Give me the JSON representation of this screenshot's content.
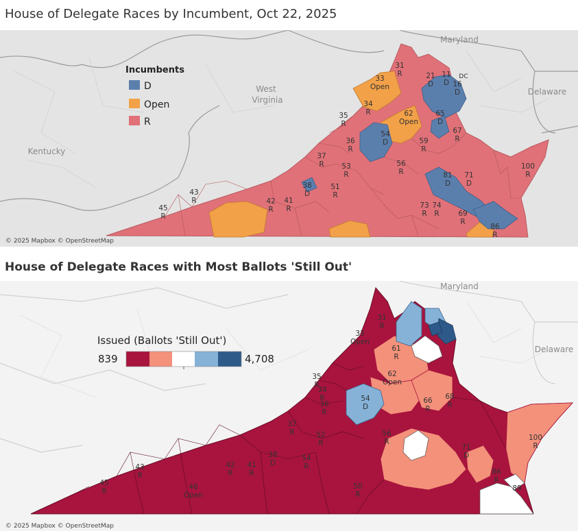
{
  "titles": {
    "incumbent_map": "House of Delegate Races by Incumbent, Oct 22, 2025",
    "ballots_map": "House of Delegate Races with Most Ballots 'Still Out'"
  },
  "colors": {
    "D": "#5b7fad",
    "Open": "#f2a148",
    "R": "#e07178",
    "state_border": "#777777",
    "ramp": [
      "#a8143e",
      "#f4917a",
      "#ffffff",
      "#86b2d8",
      "#2e5a8a"
    ]
  },
  "incumbent_map": {
    "legend": {
      "title": "Incumbents",
      "items": [
        {
          "label": "D",
          "color": "#5b7fad"
        },
        {
          "label": "Open",
          "color": "#f2a148"
        },
        {
          "label": "R",
          "color": "#e07178"
        }
      ]
    },
    "place_labels": {
      "maryland": "Maryland",
      "west_virginia_1": "West",
      "west_virginia_2": "Virginia",
      "kentucky": "Kentucky",
      "delaware": "Delaware",
      "dc": "DC"
    },
    "districts": [
      {
        "num": "31",
        "party": "R"
      },
      {
        "num": "33",
        "party": "Open"
      },
      {
        "num": "21",
        "party": "D"
      },
      {
        "num": "11",
        "party": "D"
      },
      {
        "num": "16",
        "party": "D"
      },
      {
        "num": "34",
        "party": "R"
      },
      {
        "num": "62",
        "party": "Open"
      },
      {
        "num": "65",
        "party": "D"
      },
      {
        "num": "35",
        "party": "R"
      },
      {
        "num": "54",
        "party": "D"
      },
      {
        "num": "67",
        "party": "R"
      },
      {
        "num": "36",
        "party": "R"
      },
      {
        "num": "59",
        "party": "R"
      },
      {
        "num": "37",
        "party": "R"
      },
      {
        "num": "53",
        "party": "R"
      },
      {
        "num": "56",
        "party": "R"
      },
      {
        "num": "81",
        "party": "D"
      },
      {
        "num": "71",
        "party": "D"
      },
      {
        "num": "100",
        "party": "R"
      },
      {
        "num": "43",
        "party": "R"
      },
      {
        "num": "42",
        "party": "R"
      },
      {
        "num": "41",
        "party": "R"
      },
      {
        "num": "38",
        "party": "D"
      },
      {
        "num": "51",
        "party": "R"
      },
      {
        "num": "73",
        "party": "R"
      },
      {
        "num": "74",
        "party": "R"
      },
      {
        "num": "69",
        "party": "R"
      },
      {
        "num": "86",
        "party": "R"
      },
      {
        "num": "45",
        "party": "R"
      }
    ],
    "credit": "© 2025 Mapbox © OpenStreetMap"
  },
  "ballots_map": {
    "legend": {
      "title": "Issued (Ballots 'Still Out')",
      "min_label": "839",
      "max_label": "4,708"
    },
    "place_labels": {
      "maryland": "Maryland",
      "delaware": "Delaware"
    },
    "districts": [
      {
        "num": "31",
        "party": "R"
      },
      {
        "num": "33",
        "party": "Open"
      },
      {
        "num": "61",
        "party": "R"
      },
      {
        "num": "62",
        "party": "Open"
      },
      {
        "num": "35",
        "party": "R"
      },
      {
        "num": "34",
        "party": "R"
      },
      {
        "num": "54",
        "party": "D"
      },
      {
        "num": "66",
        "party": "R"
      },
      {
        "num": "68",
        "party": "R"
      },
      {
        "num": "36",
        "party": "R"
      },
      {
        "num": "37",
        "party": "R"
      },
      {
        "num": "100",
        "party": "R"
      },
      {
        "num": "56",
        "party": "R"
      },
      {
        "num": "52",
        "party": "R"
      },
      {
        "num": "71",
        "party": "D"
      },
      {
        "num": "43",
        "party": "R"
      },
      {
        "num": "42",
        "party": "R"
      },
      {
        "num": "41",
        "party": "R"
      },
      {
        "num": "38",
        "party": "D"
      },
      {
        "num": "54",
        "party": "R"
      },
      {
        "num": "46",
        "party": "Open"
      },
      {
        "num": "50",
        "party": "R"
      },
      {
        "num": "45",
        "party": "R"
      },
      {
        "num": "86",
        "party": "R"
      },
      {
        "num": "89",
        "party": ""
      }
    ],
    "credit": "© 2025 Mapbox © OpenStreetMap"
  }
}
